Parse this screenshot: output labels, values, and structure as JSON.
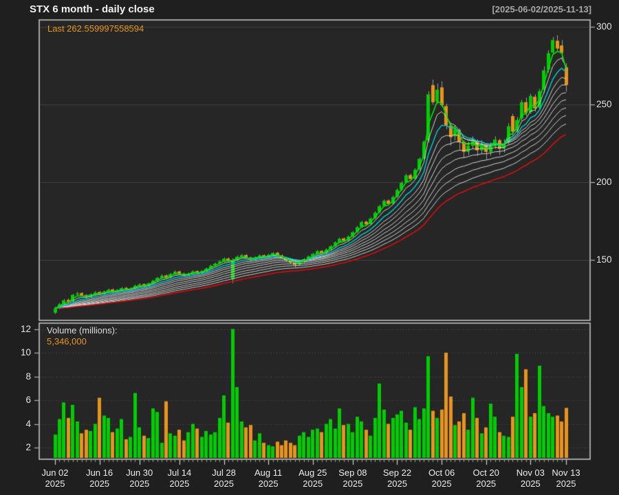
{
  "header": {
    "title": "STX  6 month - daily close",
    "date_range": "[2025-06-02/2025-11-13]"
  },
  "price_panel": {
    "last_label": "Last 262.559997558594",
    "y_ticks": [
      300,
      250,
      200,
      150
    ]
  },
  "volume_panel": {
    "label": "Volume (millions):",
    "last_volume": "5,346,000",
    "y_ticks": [
      12,
      10,
      8,
      6,
      4,
      2
    ]
  },
  "x_axis": {
    "tick_indices": [
      0,
      10,
      19,
      28,
      38,
      48,
      58,
      67,
      77,
      87,
      97,
      107,
      115
    ],
    "tick_labels": [
      [
        "Jun 02",
        "2025"
      ],
      [
        "Jun 16",
        "2025"
      ],
      [
        "Jun 30",
        "2025"
      ],
      [
        "Jul 14",
        "2025"
      ],
      [
        "Jul 28",
        "2025"
      ],
      [
        "Aug 11",
        "2025"
      ],
      [
        "Aug 25",
        "2025"
      ],
      [
        "Sep 08",
        "2025"
      ],
      [
        "Sep 22",
        "2025"
      ],
      [
        "Oct 06",
        "2025"
      ],
      [
        "Oct 20",
        "2025"
      ],
      [
        "Nov 03",
        "2025"
      ],
      [
        "Nov 13",
        "2025"
      ]
    ]
  },
  "colors": {
    "bg": "#1f1f1f",
    "panel_bg": "#262626",
    "border": "#cccccc",
    "grid": "rgba(255,255,255,0.12)",
    "vol_grid": "rgba(255,255,255,0.18)",
    "up": "#00cc00",
    "down": "#e8941a",
    "wick": "#9a9a9a",
    "ma_fast": "#00e000",
    "ma_mid": "#00c8d0",
    "ma_white": "#e4e4e4",
    "ma_slow": "#cc1010",
    "tick": "#b5b5b5",
    "accent": "#e8941a",
    "text": "#e6e6e6"
  },
  "chart_data": {
    "type": "candlestick+volume",
    "symbol": "STX",
    "title": "STX  6 month - daily close",
    "period_label": "6 month - daily close",
    "date_range": [
      "2025-06-02",
      "2025-11-13"
    ],
    "price_axis_ticks": [
      150,
      200,
      250,
      300
    ],
    "volume_axis_ticks": [
      2,
      4,
      6,
      8,
      10,
      12
    ],
    "last_close": 262.559997558594,
    "last_volume_text": "5,346,000",
    "ma_periods": [
      3,
      5,
      8,
      11,
      14,
      18,
      22,
      27,
      32,
      38,
      46
    ],
    "dates": [
      "2025-06-02",
      "2025-06-03",
      "2025-06-04",
      "2025-06-05",
      "2025-06-06",
      "2025-06-09",
      "2025-06-10",
      "2025-06-11",
      "2025-06-12",
      "2025-06-13",
      "2025-06-16",
      "2025-06-17",
      "2025-06-18",
      "2025-06-20",
      "2025-06-23",
      "2025-06-24",
      "2025-06-25",
      "2025-06-26",
      "2025-06-27",
      "2025-06-30",
      "2025-07-01",
      "2025-07-02",
      "2025-07-03",
      "2025-07-07",
      "2025-07-08",
      "2025-07-09",
      "2025-07-10",
      "2025-07-11",
      "2025-07-14",
      "2025-07-15",
      "2025-07-16",
      "2025-07-17",
      "2025-07-18",
      "2025-07-21",
      "2025-07-22",
      "2025-07-23",
      "2025-07-24",
      "2025-07-25",
      "2025-07-28",
      "2025-07-29",
      "2025-07-30",
      "2025-07-31",
      "2025-08-01",
      "2025-08-04",
      "2025-08-05",
      "2025-08-06",
      "2025-08-07",
      "2025-08-08",
      "2025-08-11",
      "2025-08-12",
      "2025-08-13",
      "2025-08-14",
      "2025-08-15",
      "2025-08-18",
      "2025-08-19",
      "2025-08-20",
      "2025-08-21",
      "2025-08-22",
      "2025-08-25",
      "2025-08-26",
      "2025-08-27",
      "2025-08-28",
      "2025-08-29",
      "2025-09-02",
      "2025-09-03",
      "2025-09-04",
      "2025-09-05",
      "2025-09-08",
      "2025-09-09",
      "2025-09-10",
      "2025-09-11",
      "2025-09-12",
      "2025-09-15",
      "2025-09-16",
      "2025-09-17",
      "2025-09-18",
      "2025-09-19",
      "2025-09-22",
      "2025-09-23",
      "2025-09-24",
      "2025-09-25",
      "2025-09-26",
      "2025-09-29",
      "2025-09-30",
      "2025-10-01",
      "2025-10-02",
      "2025-10-03",
      "2025-10-06",
      "2025-10-07",
      "2025-10-08",
      "2025-10-09",
      "2025-10-10",
      "2025-10-13",
      "2025-10-14",
      "2025-10-15",
      "2025-10-16",
      "2025-10-17",
      "2025-10-20",
      "2025-10-21",
      "2025-10-22",
      "2025-10-23",
      "2025-10-24",
      "2025-10-27",
      "2025-10-28",
      "2025-10-29",
      "2025-10-30",
      "2025-10-31",
      "2025-11-03",
      "2025-11-04",
      "2025-11-05",
      "2025-11-06",
      "2025-11-07",
      "2025-11-10",
      "2025-11-11",
      "2025-11-12",
      "2025-11-13"
    ],
    "open": [
      116.0,
      119.0,
      121.8,
      124.2,
      123.5,
      127.7,
      128.6,
      127.3,
      126.2,
      128.0,
      129.3,
      128.4,
      129.8,
      131.0,
      129.6,
      130.8,
      132.0,
      131.1,
      131.8,
      133.5,
      134.4,
      133.4,
      135.0,
      136.8,
      138.6,
      140.0,
      138.8,
      141.1,
      142.6,
      141.1,
      140.0,
      141.4,
      142.8,
      141.7,
      143.0,
      144.6,
      146.4,
      147.8,
      149.2,
      150.9,
      137.5,
      150.2,
      152.2,
      153.1,
      151.5,
      150.0,
      151.8,
      153.0,
      152.0,
      153.4,
      154.6,
      152.9,
      151.3,
      149.7,
      148.3,
      147.0,
      148.8,
      150.6,
      152.4,
      154.0,
      155.8,
      154.6,
      156.8,
      159.0,
      161.4,
      163.8,
      162.4,
      165.2,
      168.1,
      171.3,
      174.6,
      173.0,
      176.9,
      180.8,
      184.9,
      188.2,
      186.3,
      190.7,
      195.3,
      199.9,
      204.6,
      202.3,
      208.3,
      215.3,
      227.0,
      262.5,
      252.0,
      261.0,
      249.0,
      236.5,
      229.5,
      233.5,
      226.0,
      219.5,
      223.5,
      226.5,
      220.5,
      224.0,
      219.5,
      223.0,
      227.0,
      221.5,
      225.5,
      242.5,
      233.0,
      241.0,
      251.5,
      245.0,
      255.0,
      248.0,
      259.5,
      272.5,
      283.5,
      291.0,
      288.0,
      274.0
    ],
    "high": [
      119.9,
      122.3,
      124.8,
      125.1,
      128.2,
      129.5,
      129.2,
      128.0,
      128.4,
      129.8,
      130.0,
      130.2,
      131.5,
      131.6,
      131.2,
      132.4,
      132.6,
      132.3,
      134.0,
      134.9,
      134.9,
      135.4,
      137.2,
      139.0,
      140.6,
      140.6,
      141.6,
      143.2,
      143.1,
      141.8,
      141.9,
      143.3,
      143.3,
      143.5,
      145.1,
      146.9,
      148.3,
      149.7,
      151.5,
      151.6,
      151.0,
      152.8,
      153.8,
      153.7,
      152.1,
      152.3,
      153.5,
      153.5,
      153.9,
      155.1,
      155.1,
      153.5,
      151.9,
      150.3,
      148.9,
      149.3,
      151.1,
      152.9,
      154.5,
      156.3,
      156.3,
      157.3,
      159.5,
      161.9,
      164.3,
      164.4,
      165.7,
      168.5,
      171.8,
      175.2,
      175.3,
      177.4,
      181.2,
      185.5,
      188.9,
      188.9,
      191.3,
      195.9,
      200.5,
      205.4,
      205.4,
      208.9,
      215.9,
      226.9,
      258.5,
      266.0,
      263.5,
      265.0,
      250.5,
      238.0,
      236.5,
      234.5,
      227.0,
      226.0,
      229.5,
      227.5,
      227.0,
      225.0,
      225.5,
      229.5,
      228.0,
      227.5,
      238.0,
      244.0,
      242.0,
      253.0,
      254.5,
      257.0,
      256.5,
      260.0,
      274.5,
      285.0,
      293.5,
      294.5,
      291.5,
      276.5
    ],
    "low": [
      115.2,
      118.2,
      120.9,
      122.2,
      123.0,
      126.7,
      126.5,
      125.2,
      125.6,
      127.2,
      127.6,
      127.8,
      129.1,
      128.8,
      128.9,
      130.1,
      130.3,
      130.4,
      131.2,
      132.8,
      132.5,
      132.8,
      134.4,
      136.2,
      138.0,
      137.8,
      138.2,
      140.5,
      140.2,
      139.0,
      139.3,
      140.8,
      140.9,
      141.0,
      142.4,
      144.0,
      145.8,
      147.1,
      148.5,
      148.8,
      135.0,
      149.4,
      151.4,
      150.7,
      149.1,
      149.3,
      151.0,
      151.1,
      151.3,
      152.7,
      152.1,
      150.5,
      148.9,
      147.5,
      145.3,
      146.3,
      148.1,
      149.9,
      151.7,
      153.3,
      153.7,
      153.9,
      156.1,
      158.3,
      160.7,
      161.5,
      161.7,
      164.5,
      167.3,
      170.5,
      172.0,
      172.2,
      176.1,
      180.0,
      184.1,
      185.1,
      185.5,
      189.9,
      194.5,
      199.1,
      200.9,
      201.5,
      207.5,
      214.5,
      225.5,
      250.0,
      250.5,
      248.5,
      234.0,
      223.5,
      227.0,
      221.0,
      215.5,
      217.5,
      221.5,
      217.0,
      218.5,
      214.5,
      217.0,
      221.5,
      217.5,
      219.0,
      224.5,
      230.0,
      231.0,
      239.5,
      242.5,
      244.0,
      245.5,
      246.5,
      257.5,
      270.5,
      282.0,
      284.0,
      279.5,
      258.3
    ],
    "close": [
      118.8,
      121.5,
      124.0,
      123.0,
      127.5,
      128.4,
      127.2,
      126.0,
      127.8,
      129.0,
      128.2,
      129.6,
      130.8,
      129.4,
      130.6,
      131.8,
      131.0,
      131.6,
      133.4,
      134.2,
      133.2,
      134.8,
      136.6,
      138.4,
      139.8,
      138.6,
      140.9,
      142.4,
      141.0,
      139.8,
      141.2,
      142.6,
      141.6,
      142.8,
      144.4,
      146.2,
      147.6,
      149.0,
      150.8,
      149.6,
      149.9,
      152.0,
      153.0,
      151.4,
      149.8,
      151.6,
      152.8,
      151.8,
      153.2,
      154.4,
      152.8,
      151.2,
      149.6,
      148.2,
      146.8,
      148.6,
      150.4,
      152.2,
      153.8,
      155.6,
      154.4,
      156.6,
      158.8,
      161.2,
      163.6,
      162.2,
      165.0,
      167.8,
      171.0,
      174.4,
      172.8,
      176.6,
      180.4,
      184.6,
      188.0,
      186.0,
      190.4,
      195.0,
      199.6,
      204.4,
      202.0,
      208.0,
      215.0,
      226.0,
      256.5,
      251.5,
      259.5,
      249.5,
      236.5,
      229.0,
      234.0,
      226.0,
      219.5,
      223.5,
      227.0,
      220.5,
      224.5,
      219.5,
      223.5,
      227.5,
      221.5,
      225.0,
      236.0,
      232.5,
      240.0,
      251.5,
      244.5,
      255.5,
      247.5,
      258.5,
      272.0,
      283.0,
      291.5,
      286.0,
      283.0,
      262.56
    ],
    "volume_millions": [
      3.1,
      4.4,
      5.8,
      4.5,
      5.6,
      4.2,
      3.2,
      3.5,
      3.4,
      4.0,
      6.2,
      4.7,
      4.5,
      3.3,
      3.6,
      4.4,
      2.7,
      2.9,
      6.6,
      3.7,
      3.0,
      2.8,
      5.3,
      5.0,
      2.4,
      5.9,
      3.2,
      3.0,
      3.5,
      2.6,
      3.3,
      4.0,
      3.6,
      2.9,
      3.4,
      3.1,
      3.3,
      4.5,
      6.4,
      4.1,
      12.0,
      7.1,
      4.2,
      3.7,
      3.9,
      2.6,
      3.2,
      2.4,
      2.2,
      2.1,
      2.5,
      2.2,
      2.6,
      2.4,
      2.2,
      3.0,
      3.3,
      2.9,
      3.5,
      3.6,
      3.3,
      4.0,
      4.4,
      3.6,
      5.3,
      3.9,
      4.0,
      3.3,
      4.6,
      4.2,
      3.5,
      3.0,
      4.5,
      7.4,
      5.2,
      4.0,
      4.5,
      4.8,
      5.1,
      4.1,
      3.5,
      5.4,
      4.4,
      5.3,
      9.7,
      5.1,
      4.5,
      5.2,
      10.0,
      6.3,
      3.9,
      4.2,
      4.9,
      3.5,
      6.2,
      4.5,
      3.2,
      3.7,
      5.7,
      4.6,
      3.3,
      3.0,
      2.9,
      4.6,
      9.9,
      7.1,
      8.6,
      4.6,
      4.9,
      8.9,
      5.5,
      4.9,
      4.6,
      4.7,
      4.2,
      5.346
    ]
  }
}
